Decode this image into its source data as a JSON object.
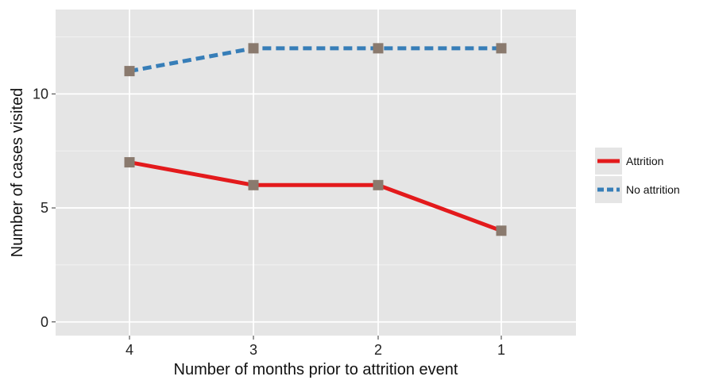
{
  "chart_data": {
    "type": "line",
    "title": "",
    "xlabel": "Number of months prior to attrition event",
    "ylabel": "Number of cases visited",
    "categories": [
      "4",
      "3",
      "2",
      "1"
    ],
    "yticks": [
      0,
      5,
      10
    ],
    "ylim": [
      -0.6,
      13.7
    ],
    "grid": true,
    "legend": "right",
    "series": [
      {
        "name": "Attrition",
        "values": [
          7,
          6,
          6,
          4
        ],
        "color": "#e31a1c",
        "style": "solid"
      },
      {
        "name": "No attrition",
        "values": [
          11,
          12,
          12,
          12
        ],
        "color": "#377eb8",
        "style": "dashed"
      }
    ],
    "marker_color": "#8a7a6e",
    "panel_color": "#e5e5e5",
    "grid_color": "#ffffff"
  }
}
